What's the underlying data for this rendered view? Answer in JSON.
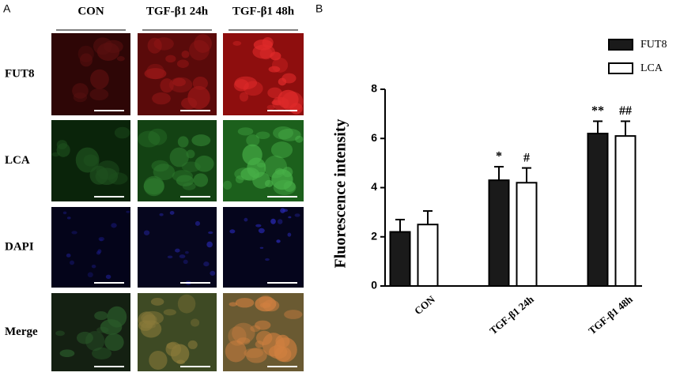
{
  "panel_a": {
    "label": "A",
    "columns": [
      "CON",
      "TGF-β1 24h",
      "TGF-β1 48h"
    ],
    "rows": [
      "FUT8",
      "LCA",
      "DAPI",
      "Merge"
    ]
  },
  "panel_b": {
    "label": "B"
  },
  "chart_data": {
    "type": "bar",
    "y_label": "Fluorescence intensity",
    "categories": [
      "CON",
      "TGF-β1 24h",
      "TGF-β1 48h"
    ],
    "series": [
      {
        "name": "FUT8",
        "color": "#1a1a1a",
        "values": [
          2.2,
          4.3,
          6.2
        ],
        "errors": [
          0.5,
          0.55,
          0.5
        ],
        "annotations": [
          null,
          "*",
          "**"
        ]
      },
      {
        "name": "LCA",
        "color": "#ffffff",
        "values": [
          2.5,
          4.2,
          6.1
        ],
        "errors": [
          0.55,
          0.6,
          0.6
        ],
        "annotations": [
          null,
          "#",
          "##"
        ]
      }
    ],
    "ylim": [
      0,
      8
    ],
    "yticks": [
      0,
      2,
      4,
      6,
      8
    ],
    "legend": "upper right"
  }
}
